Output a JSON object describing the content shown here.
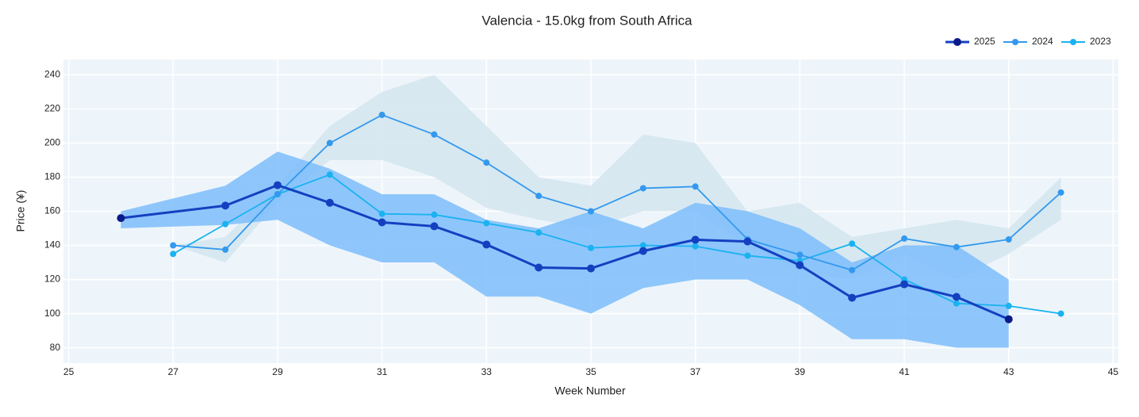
{
  "chart_data": {
    "type": "line",
    "title": "Valencia - 15.0kg from South Africa",
    "x_label": "Week Number",
    "y_label": "Price (¥)",
    "xlim": [
      24.9,
      45.1
    ],
    "xticks": [
      25,
      27,
      29,
      31,
      33,
      35,
      37,
      39,
      41,
      43,
      45
    ],
    "ylim": [
      71,
      249
    ],
    "yticks": [
      80,
      100,
      120,
      140,
      160,
      180,
      200,
      220,
      240
    ],
    "grid": true,
    "legend": "top-right",
    "series": [
      {
        "name": "2025",
        "color": "#1440c0",
        "marker_color": "#0b1a8a",
        "x": [
          26,
          28,
          29,
          30,
          31,
          32,
          33,
          34,
          35,
          36,
          37,
          38,
          39,
          40,
          41,
          42,
          43
        ],
        "values": [
          156,
          163.3,
          175.3,
          165,
          153.5,
          151.2,
          140.5,
          127,
          126.5,
          136.7,
          143.3,
          142.3,
          128.4,
          109.3,
          117.2,
          109.8,
          96.7
        ],
        "band_color": "#7dbdfc",
        "band_upper": [
          160,
          175,
          195,
          185,
          170,
          170,
          155,
          150,
          160,
          150,
          165,
          160,
          150,
          130,
          140,
          140,
          120
        ],
        "band_lower": [
          150,
          152,
          155,
          140,
          130,
          130,
          110,
          110,
          100,
          115,
          120,
          120,
          105,
          85,
          85,
          80,
          80
        ]
      },
      {
        "name": "2024",
        "color": "#3399ee",
        "x": [
          27,
          28,
          29,
          30,
          31,
          32,
          33,
          34,
          35,
          36,
          37,
          38,
          39,
          40,
          41,
          42,
          43,
          44
        ],
        "values": [
          140,
          137.5,
          170,
          200,
          216.5,
          205,
          188.5,
          169,
          160,
          173.5,
          174.5,
          143.5,
          134.5,
          125.5,
          144,
          139,
          143.5,
          171
        ],
        "band_color": "#d3e5ee",
        "band_upper": [
          140,
          145,
          175,
          210,
          230,
          240,
          210,
          180,
          175,
          205,
          200,
          160,
          165,
          145,
          150,
          155,
          150,
          180
        ],
        "band_lower": [
          140,
          130,
          165,
          190,
          190,
          180,
          162,
          155,
          150,
          160,
          160,
          140,
          125,
          120,
          135,
          120,
          135,
          155
        ]
      },
      {
        "name": "2023",
        "color": "#1ab2f0",
        "x": [
          27,
          28,
          29,
          30,
          31,
          32,
          33,
          34,
          35,
          36,
          37,
          38,
          39,
          40,
          41,
          42,
          43,
          44
        ],
        "values": [
          135,
          152.5,
          170,
          181.5,
          158.5,
          158,
          153,
          147.5,
          138.5,
          140,
          139.5,
          134,
          131,
          141,
          120,
          106,
          104.5,
          100
        ]
      }
    ]
  }
}
